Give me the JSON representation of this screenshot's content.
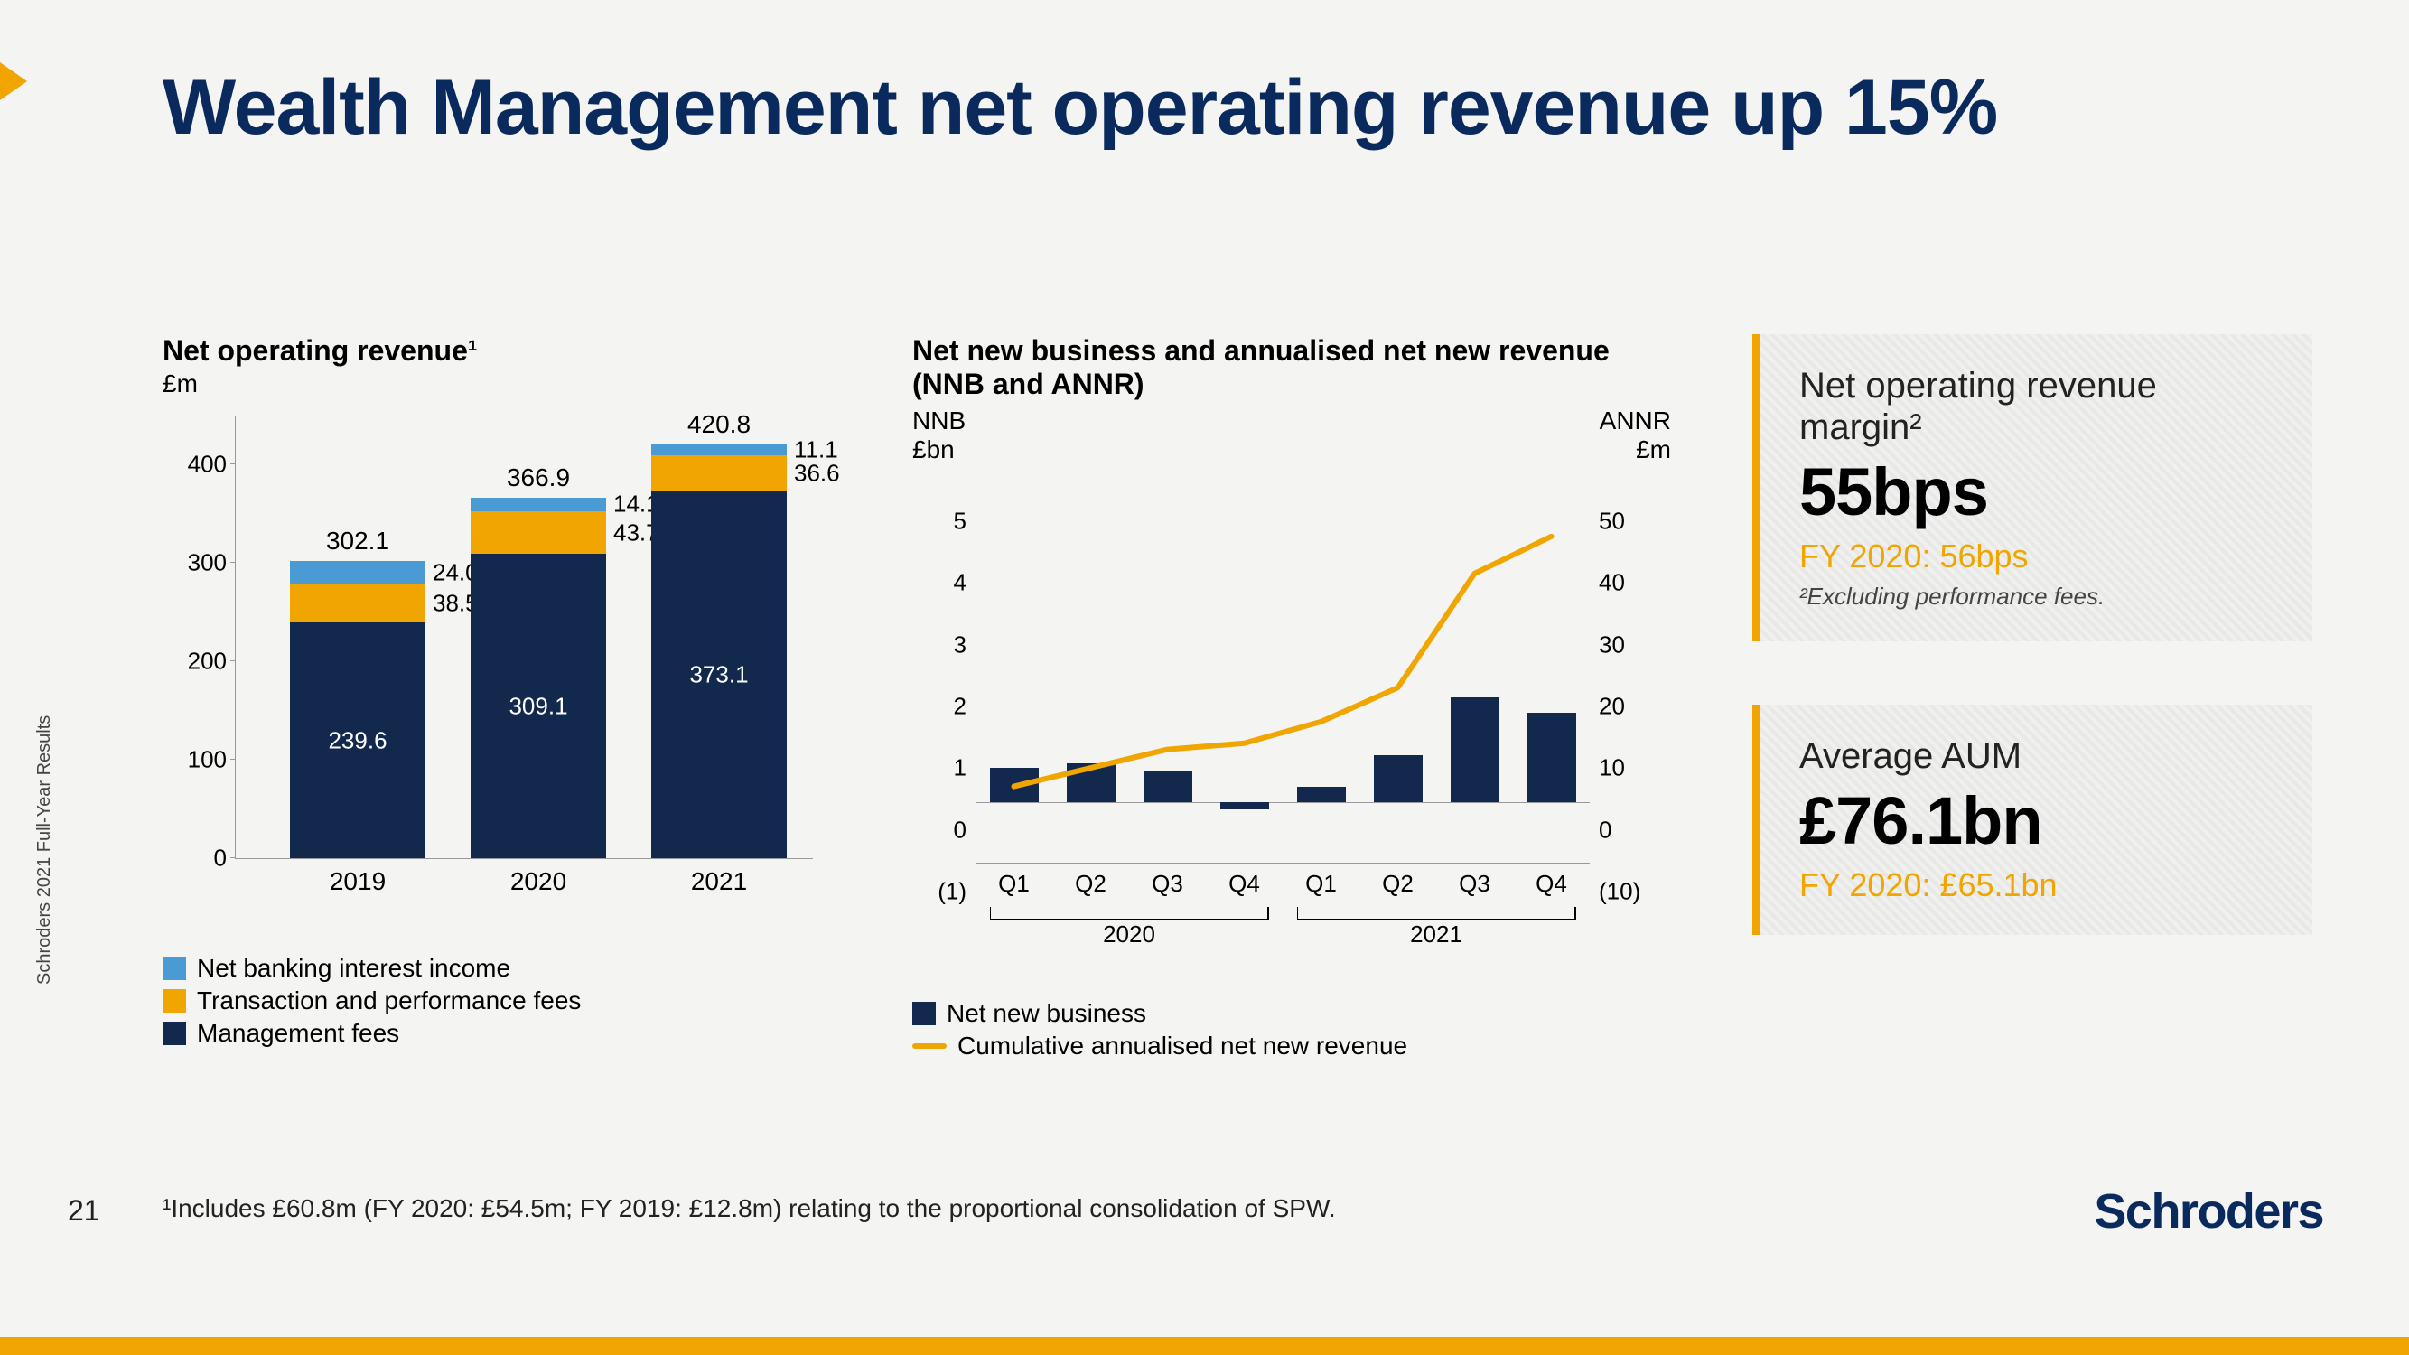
{
  "slide": {
    "title": "Wealth Management net operating revenue up 15%",
    "side_label": "Schroders 2021 Full-Year Results",
    "page_number": "21",
    "footnote": "¹Includes £60.8m (FY 2020: £54.5m; FY 2019: £12.8m) relating to the proportional consolidation of SPW.",
    "brand": "Schroders"
  },
  "colors": {
    "navy": "#0a2a5e",
    "darknavy": "#12284c",
    "orange": "#f0a500",
    "lightblue": "#4a9bd4"
  },
  "chart1": {
    "type": "stacked-bar",
    "title": "Net operating revenue¹",
    "unit": "£m",
    "y_max": 450,
    "y_ticks": [
      0,
      100,
      200,
      300,
      400
    ],
    "categories": [
      "2019",
      "2020",
      "2021"
    ],
    "totals": [
      "302.1",
      "366.9",
      "420.8"
    ],
    "series": [
      {
        "name": "Management fees",
        "color": "#12284c",
        "values": [
          239.6,
          309.1,
          373.1
        ],
        "labels": [
          "239.6",
          "309.1",
          "373.1"
        ]
      },
      {
        "name": "Transaction and performance fees",
        "color": "#f0a500",
        "values": [
          38.5,
          43.7,
          36.6
        ],
        "labels": [
          "38.5",
          "43.7",
          "36.6"
        ]
      },
      {
        "name": "Net banking interest income",
        "color": "#4a9bd4",
        "values": [
          24.0,
          14.1,
          11.1
        ],
        "labels": [
          "24.0",
          "14.1",
          "11.1"
        ]
      }
    ],
    "legend_order": [
      "Net banking interest income",
      "Transaction and performance fees",
      "Management fees"
    ]
  },
  "chart2": {
    "type": "bar-line-combo",
    "title": "Net new business and annualised net new revenue (NNB and ANNR)",
    "left_axis_label": "NNB\n£bn",
    "right_axis_label": "ANNR\n£m",
    "left_ticks": [
      "(1)",
      "0",
      "1",
      "2",
      "3",
      "4",
      "5"
    ],
    "right_ticks": [
      "(10)",
      "0",
      "10",
      "20",
      "30",
      "40",
      "50"
    ],
    "y_min": -1,
    "y_max": 5,
    "x_labels": [
      "Q1",
      "Q2",
      "Q3",
      "Q4",
      "Q1",
      "Q2",
      "Q3",
      "Q4"
    ],
    "year_groups": [
      {
        "label": "2020",
        "from": 0,
        "to": 3
      },
      {
        "label": "2021",
        "from": 4,
        "to": 7
      }
    ],
    "bars": {
      "color": "#12284c",
      "values": [
        0.55,
        0.62,
        0.5,
        -0.12,
        0.25,
        0.75,
        1.7,
        1.45
      ]
    },
    "line": {
      "color": "#f0a500",
      "width": 6,
      "values": [
        0.25,
        0.55,
        0.85,
        0.95,
        1.3,
        1.85,
        3.7,
        4.3
      ]
    },
    "legend": [
      {
        "type": "swatch",
        "color": "#12284c",
        "label": "Net new business"
      },
      {
        "type": "line",
        "color": "#f0a500",
        "label": "Cumulative annualised net new revenue"
      }
    ]
  },
  "callouts": [
    {
      "title": "Net operating revenue margin²",
      "value": "55bps",
      "prev": "FY 2020: 56bps",
      "footnote": "²Excluding performance fees."
    },
    {
      "title": "Average AUM",
      "value": "£76.1bn",
      "prev": "FY 2020: £65.1bn",
      "footnote": ""
    }
  ]
}
